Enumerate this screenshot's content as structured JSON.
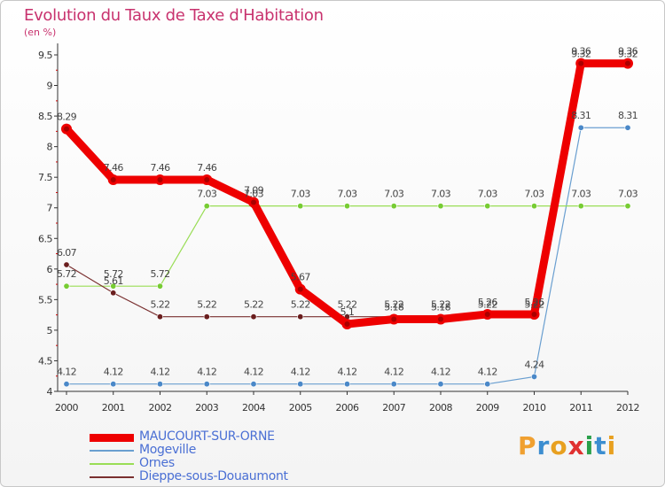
{
  "title": "Evolution du Taux de Taxe d'Habitation",
  "subtitle": "(en %)",
  "logo": {
    "letters": [
      "P",
      "r",
      "o",
      "x",
      "i",
      "t",
      "i"
    ],
    "colors": [
      "#f0a030",
      "#3c8ed0",
      "#e8a020",
      "#e03030",
      "#2aa04a",
      "#3c8ed0",
      "#e8a020"
    ]
  },
  "chart_data": {
    "type": "line",
    "title": "Evolution du Taux de Taxe d'Habitation",
    "ylabel": "(en %)",
    "xlabel": "",
    "categories": [
      "2000",
      "2001",
      "2002",
      "2003",
      "2004",
      "2005",
      "2006",
      "2007",
      "2008",
      "2009",
      "2010",
      "2011",
      "2012"
    ],
    "ylim": [
      4,
      9.5
    ],
    "yticks": [
      "4",
      "4.5",
      "5",
      "5.5",
      "6",
      "6.5",
      "7",
      "7.5",
      "8",
      "8.5",
      "9",
      "9.5"
    ],
    "grid": false,
    "legend_position": "bottom-left",
    "series": [
      {
        "name": "MAUCOURT-SUR-ORNE",
        "color": "#ee0000",
        "emphasis": true,
        "values": [
          8.29,
          7.46,
          7.46,
          7.46,
          7.09,
          5.67,
          5.1,
          5.18,
          5.18,
          5.26,
          5.26,
          9.36,
          9.36
        ],
        "labels": [
          "8.29",
          "7.46",
          "7.46",
          "7.46",
          "7.09",
          "5.67",
          "5.1",
          "5.18",
          "5.18",
          "5.26",
          "5.26",
          "9.36",
          "9.36"
        ]
      },
      {
        "name": "Mogeville",
        "color": "#6a9fd0",
        "emphasis": false,
        "values": [
          4.12,
          4.12,
          4.12,
          4.12,
          4.12,
          4.12,
          4.12,
          4.12,
          4.12,
          4.12,
          4.24,
          8.31,
          8.31
        ],
        "labels": [
          "4.12",
          "4.12",
          "4.12",
          "4.12",
          "4.12",
          "4.12",
          "4.12",
          "4.12",
          "4.12",
          "4.12",
          "4.24",
          "8.31",
          "8.31"
        ]
      },
      {
        "name": "Ornes",
        "color": "#99dd55",
        "emphasis": false,
        "values": [
          5.72,
          5.72,
          5.72,
          7.03,
          7.03,
          7.03,
          7.03,
          7.03,
          7.03,
          7.03,
          7.03,
          7.03,
          7.03
        ],
        "labels": [
          "5.72",
          "5.72",
          "5.72",
          "7.03",
          "7.03",
          "7.03",
          "7.03",
          "7.03",
          "7.03",
          "7.03",
          "7.03",
          "7.03",
          "7.03"
        ]
      },
      {
        "name": "Dieppe-sous-Douaumont",
        "color": "#7a3030",
        "emphasis": false,
        "values": [
          6.07,
          5.61,
          5.22,
          5.22,
          5.22,
          5.22,
          5.22,
          5.22,
          5.22,
          5.22,
          5.22,
          9.32,
          9.32
        ],
        "labels": [
          "6.07",
          "5.61",
          "5.22",
          "5.22",
          "5.22",
          "5.22",
          "5.22",
          "5.22",
          "5.22",
          "5.22",
          "5.22",
          "9.32",
          "9.32"
        ]
      }
    ]
  }
}
